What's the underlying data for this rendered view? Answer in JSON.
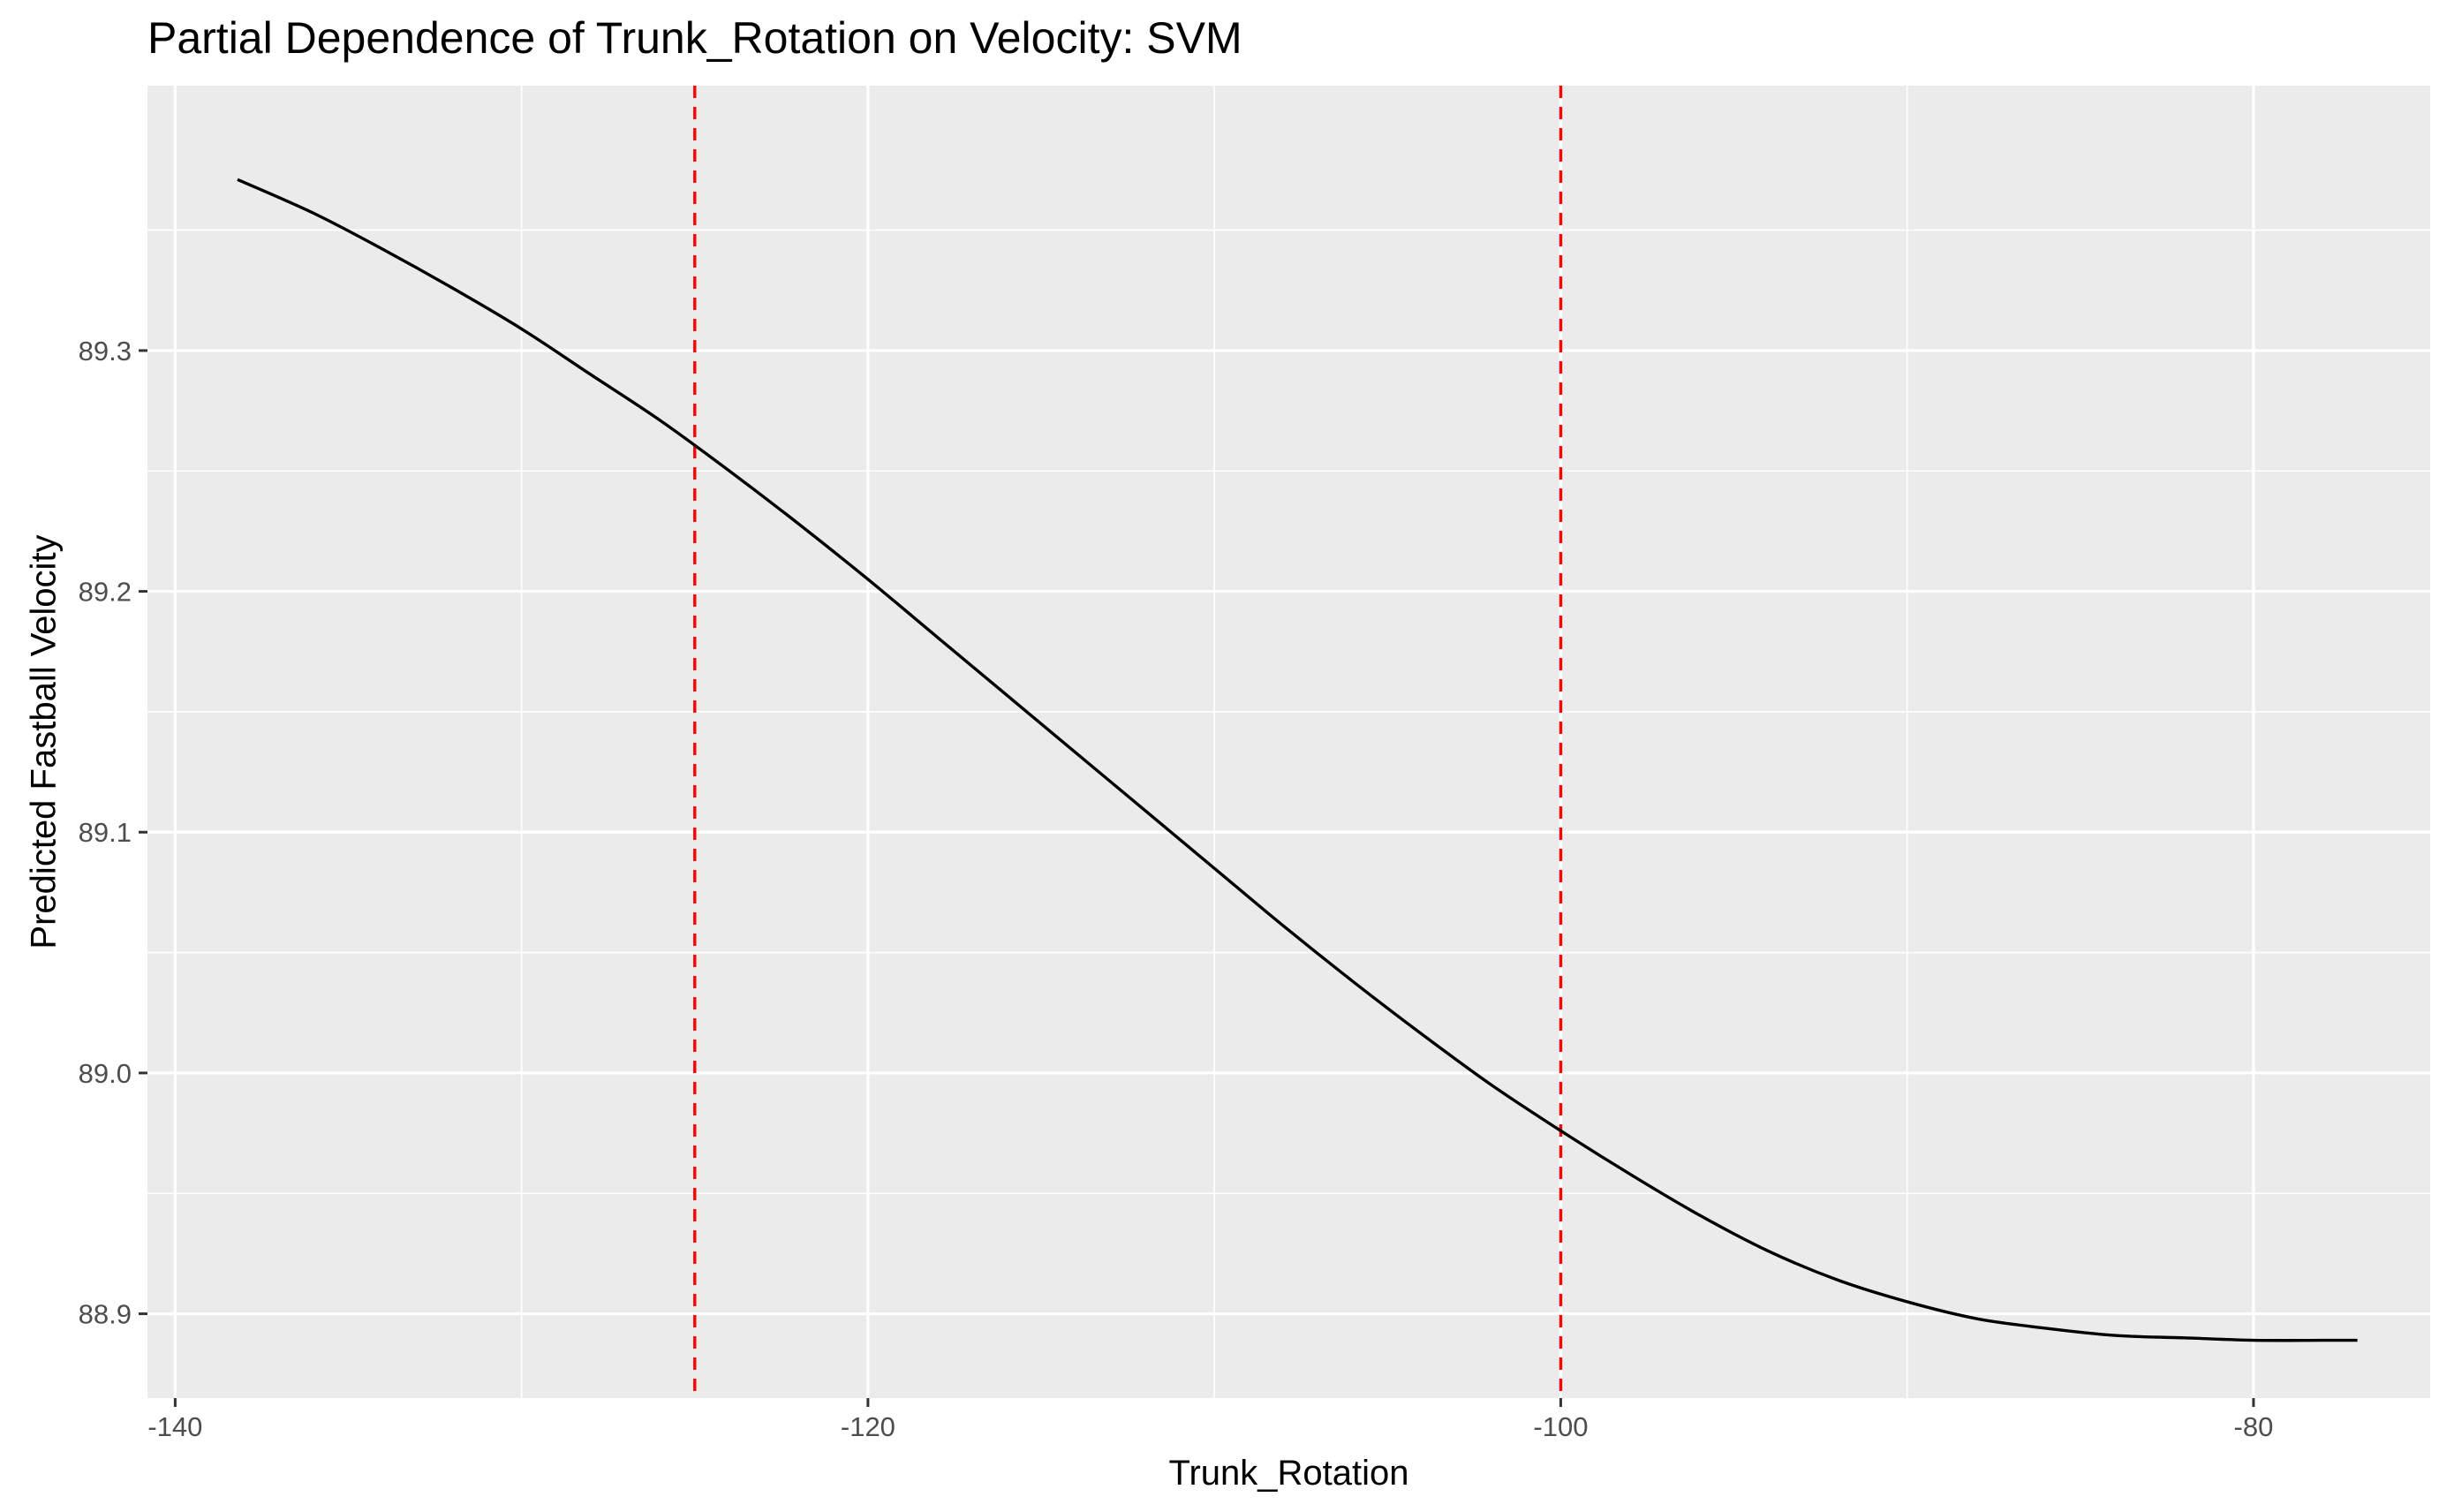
{
  "chart_data": {
    "type": "line",
    "title": "Partial Dependence of Trunk_Rotation on Velocity: SVM",
    "xlabel": "Trunk_Rotation",
    "ylabel": "Predicted Fastball Velocity",
    "xlim": [
      -140.8,
      -74.9
    ],
    "ylim": [
      88.865,
      89.41
    ],
    "x_ticks": [
      -140,
      -120,
      -100,
      -80
    ],
    "x_tick_labels": [
      "-140",
      "-120",
      "-100",
      "-80"
    ],
    "y_ticks": [
      88.9,
      89.0,
      89.1,
      89.2,
      89.3
    ],
    "y_tick_labels": [
      "88.9",
      "89.0",
      "89.1",
      "89.2",
      "89.3"
    ],
    "grid": true,
    "background": "#ebebeb",
    "series": [
      {
        "color": "#000000",
        "x": [
          -138.2,
          -136,
          -134,
          -132,
          -130,
          -128,
          -126,
          -124,
          -122,
          -120,
          -118,
          -116,
          -114,
          -112,
          -110,
          -108,
          -106,
          -104,
          -102,
          -100,
          -98,
          -96,
          -94,
          -92,
          -90,
          -88,
          -86,
          -84,
          -82,
          -80,
          -78,
          -77
        ],
        "y": [
          89.371,
          89.357,
          89.342,
          89.326,
          89.309,
          89.29,
          89.271,
          89.25,
          89.228,
          89.205,
          89.181,
          89.157,
          89.133,
          89.109,
          89.085,
          89.061,
          89.038,
          89.016,
          88.995,
          88.976,
          88.958,
          88.941,
          88.926,
          88.914,
          88.905,
          88.898,
          88.894,
          88.891,
          88.89,
          88.889,
          88.889,
          88.889
        ]
      }
    ],
    "reference_lines": [
      {
        "axis": "x",
        "value": -125,
        "color": "#ff0000",
        "style": "dashed"
      },
      {
        "axis": "x",
        "value": -100,
        "color": "#ff0000",
        "style": "dashed"
      }
    ]
  }
}
